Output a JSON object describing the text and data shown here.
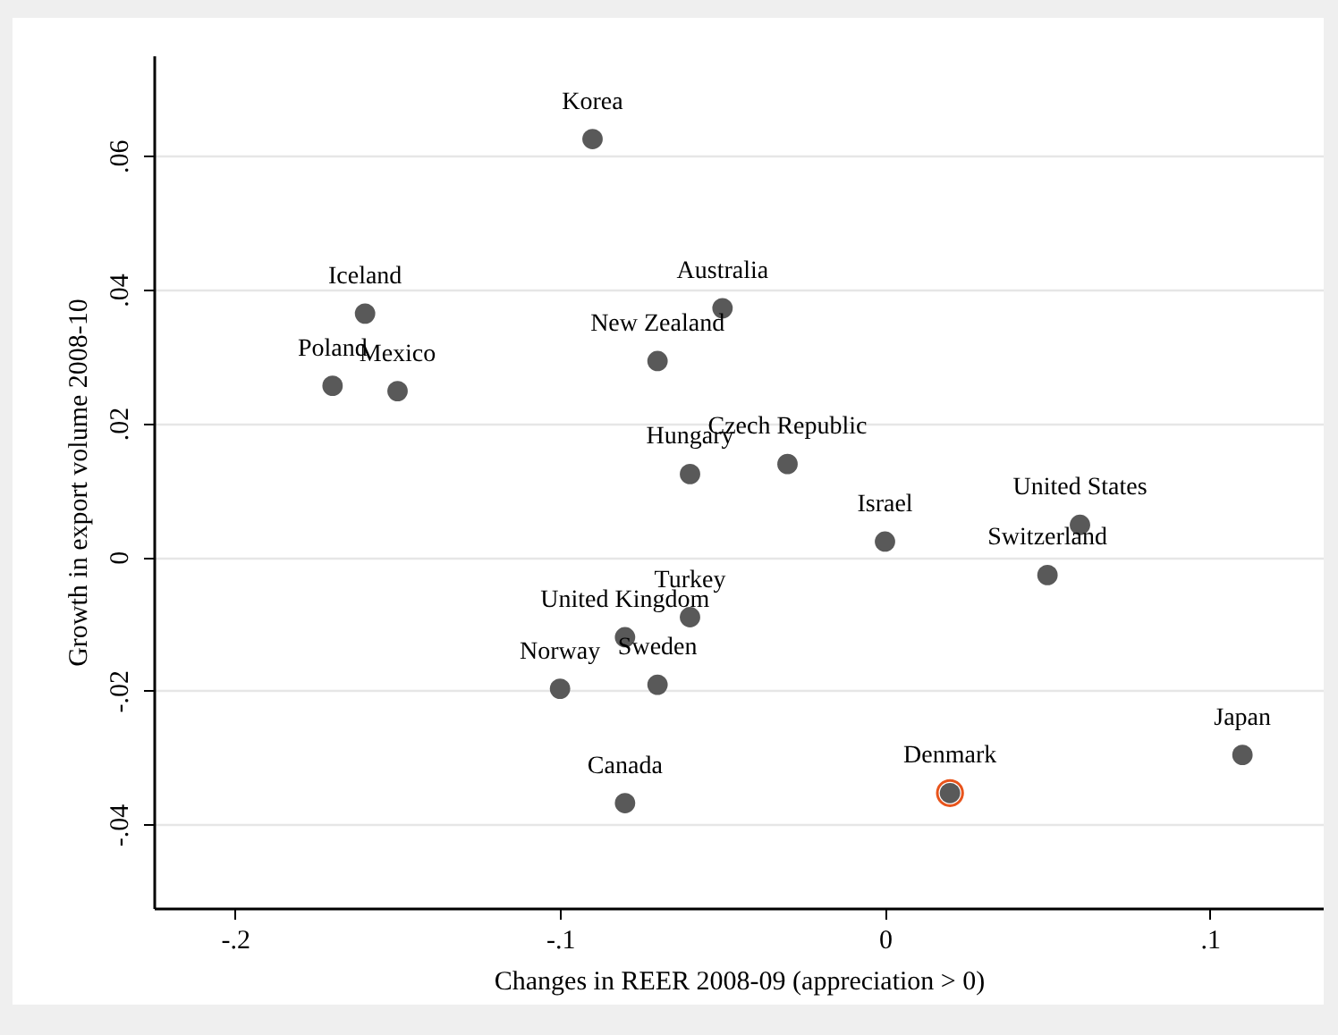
{
  "chart_data": {
    "type": "scatter",
    "xlabel": "Changes in REER 2008-09 (appreciation > 0)",
    "ylabel": "Growth in export volume 2008-10",
    "xlim": [
      -0.225,
      0.135
    ],
    "xticks": [
      {
        "value": -0.2,
        "label": "-.2"
      },
      {
        "value": -0.1,
        "label": "-.1"
      },
      0,
      {
        "value": 0.1,
        "label": ".1"
      }
    ],
    "ylim": [
      -0.0525,
      0.075
    ],
    "yticks": [
      {
        "value": -0.04,
        "label": "-.04"
      },
      {
        "value": -0.02,
        "label": "-.02"
      },
      0,
      {
        "value": 0.02,
        "label": ".02"
      },
      {
        "value": 0.04,
        "label": ".04"
      },
      {
        "value": 0.06,
        "label": ".06"
      }
    ],
    "grid": "y",
    "marker": "circle",
    "series": [
      {
        "color": "#595959",
        "x": [
          -0.09,
          -0.16,
          -0.05,
          -0.07,
          -0.17,
          -0.15,
          -0.06,
          -0.03,
          0.06,
          0,
          0.05,
          -0.06,
          -0.08,
          -0.1,
          -0.07,
          -0.08,
          0.02,
          0.11
        ],
        "values": [
          0.0625,
          0.0364,
          0.0372,
          0.0293,
          0.0256,
          0.0248,
          0.0124,
          0.0139,
          0.0048,
          0.0023,
          -0.0027,
          -0.009,
          -0.012,
          -0.0197,
          -0.0191,
          -0.0368,
          -0.0353,
          -0.0296
        ]
      },
      {
        "color": "#e8541c",
        "x": [
          0.02
        ],
        "values": [
          -0.0353
        ]
      }
    ],
    "annotations": [
      {
        "text": "Korea",
        "x": -0.09,
        "y": 0.0625
      },
      {
        "text": "Iceland",
        "x": -0.16,
        "y": 0.0364
      },
      {
        "text": "Australia",
        "x": -0.05,
        "y": 0.0372
      },
      {
        "text": "New Zealand",
        "x": -0.07,
        "y": 0.0293
      },
      {
        "text": "Poland",
        "x": -0.17,
        "y": 0.0256
      },
      {
        "text": "Mexico",
        "x": -0.15,
        "y": 0.0248
      },
      {
        "text": "Hungary",
        "x": -0.06,
        "y": 0.0124
      },
      {
        "text": "Czech Republic",
        "x": -0.03,
        "y": 0.0139
      },
      {
        "text": "United States",
        "x": 0.06,
        "y": 0.0048
      },
      {
        "text": "Israel",
        "x": 0,
        "y": 0.0023
      },
      {
        "text": "Switzerland",
        "x": 0.05,
        "y": -0.0027
      },
      {
        "text": "Turkey",
        "x": -0.06,
        "y": -0.009
      },
      {
        "text": "United Kingdom",
        "x": -0.08,
        "y": -0.012
      },
      {
        "text": "Norway",
        "x": -0.1,
        "y": -0.0197
      },
      {
        "text": "Sweden",
        "x": -0.07,
        "y": -0.0191
      },
      {
        "text": "Canada",
        "x": -0.08,
        "y": -0.0368
      },
      {
        "text": "Denmark",
        "x": 0.02,
        "y": -0.0353
      },
      {
        "text": "Japan",
        "x": 0.11,
        "y": -0.0296
      }
    ]
  }
}
